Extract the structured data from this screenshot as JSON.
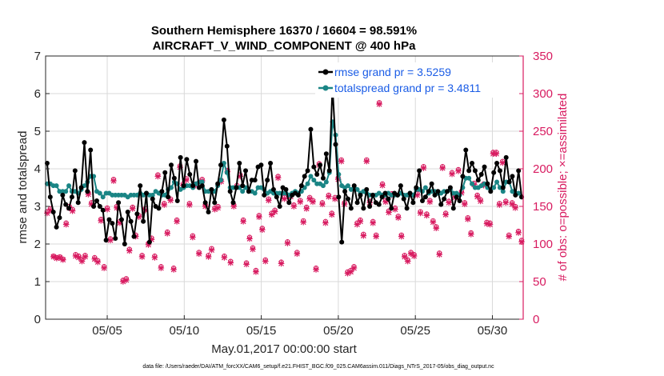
{
  "chart_data": {
    "type": "line",
    "title_line1": "Southern Hemisphere 16370 / 16604 = 98.591%",
    "title_line2": "AIRCRAFT_V_WIND_COMPONENT @ 400 hPa",
    "xlabel": "May.01,2017 00:00:00 start",
    "ylabel_left": "rmse and totalspread",
    "ylabel_right": "# of obs: o=possible; ×=assimilated",
    "footer": "data file: /Users/raeder/DAI/ATM_forcXX/CAM6_setup/f.e21.FHIST_BGC.f09_025.CAM6assim.011/Diags_NTrS_2017-05/obs_diag_output.nc",
    "x_ticks": [
      {
        "value": 5,
        "label": "05/05"
      },
      {
        "value": 10,
        "label": "05/10"
      },
      {
        "value": 15,
        "label": "05/15"
      },
      {
        "value": 20,
        "label": "05/20"
      },
      {
        "value": 25,
        "label": "05/25"
      },
      {
        "value": 30,
        "label": "05/30"
      }
    ],
    "xlim": [
      1,
      32
    ],
    "ylim_left": [
      0,
      7
    ],
    "yticks_left": [
      "0",
      "1",
      "2",
      "3",
      "4",
      "5",
      "6",
      "7"
    ],
    "ylim_right": [
      0,
      350
    ],
    "yticks_right": [
      "0",
      "50",
      "100",
      "150",
      "200",
      "250",
      "300",
      "350"
    ],
    "colors": {
      "rmse": "#000000",
      "spread": "#1a8585",
      "obs": "#d81b60",
      "legend_text": "#1a5ce6"
    },
    "series": [
      {
        "name": "rmse grand pr = 3.5259",
        "axis": "left",
        "values": [
          4.15,
          3.25,
          2.85,
          2.45,
          2.7,
          3.3,
          3.05,
          2.95,
          3.25,
          3.95,
          3.1,
          3.5,
          4.7,
          3.4,
          4.5,
          3.0,
          3.15,
          3.0,
          2.9,
          2.1,
          2.65,
          2.55,
          2.15,
          3.1,
          2.65,
          2.0,
          2.85,
          2.6,
          2.2,
          2.8,
          3.55,
          2.6,
          3.35,
          2.05,
          3.2,
          3.0,
          2.95,
          3.4,
          3.9,
          3.25,
          4.1,
          3.75,
          3.15,
          4.3,
          3.55,
          4.25,
          3.85,
          3.55,
          4.2,
          3.5,
          3.55,
          3.1,
          2.85,
          3.45,
          3.1,
          3.6,
          4.1,
          5.3,
          4.6,
          3.4,
          3.1,
          3.5,
          4.15,
          3.55,
          3.95,
          3.4,
          3.7,
          3.7,
          4.05,
          4.1,
          3.3,
          3.7,
          4.15,
          3.45,
          3.25,
          3.0,
          3.5,
          3.45,
          3.1,
          3.3,
          3.35,
          3.3,
          3.55,
          3.8,
          3.95,
          5.05,
          4.05,
          3.85,
          4.1,
          3.75,
          4.4,
          3.95,
          6.2,
          4.65,
          3.25,
          2.05,
          3.4,
          3.2,
          2.95,
          3.55,
          3.1,
          3.3,
          2.95,
          3.45,
          3.0,
          3.3,
          3.1,
          3.05,
          3.25,
          3.35,
          3.2,
          2.95,
          3.35,
          3.3,
          3.55,
          3.2,
          2.95,
          3.35,
          3.1,
          3.5,
          3.95,
          3.15,
          3.25,
          3.4,
          3.6,
          3.3,
          3.4,
          3.05,
          3.2,
          3.4,
          3.5,
          2.95,
          3.25,
          3.15,
          3.8,
          4.5,
          3.95,
          4.15,
          3.95,
          3.7,
          3.85,
          4.05,
          3.6,
          3.4,
          3.9,
          4.15,
          3.95,
          3.5,
          4.3,
          3.65,
          3.8,
          3.3,
          3.95,
          3.25
        ]
      },
      {
        "name": "totalspread grand pr = 3.4811",
        "axis": "left",
        "values": [
          3.6,
          3.6,
          3.55,
          3.55,
          3.4,
          3.4,
          3.4,
          3.55,
          3.4,
          3.4,
          3.35,
          3.45,
          3.55,
          3.65,
          3.8,
          3.8,
          3.4,
          3.35,
          3.25,
          3.35,
          3.35,
          3.3,
          3.3,
          3.3,
          3.3,
          3.3,
          3.25,
          3.3,
          3.3,
          3.3,
          3.35,
          3.3,
          3.35,
          3.3,
          3.3,
          3.4,
          3.35,
          3.3,
          3.3,
          3.45,
          3.5,
          3.65,
          3.6,
          3.45,
          3.5,
          3.55,
          3.55,
          3.5,
          3.6,
          3.65,
          3.65,
          3.4,
          3.4,
          3.4,
          3.4,
          3.55,
          3.7,
          4.15,
          3.9,
          3.5,
          3.5,
          3.5,
          3.5,
          3.4,
          3.5,
          3.4,
          3.4,
          3.35,
          3.5,
          3.5,
          3.45,
          3.35,
          3.4,
          3.35,
          3.35,
          3.35,
          3.35,
          3.35,
          3.3,
          3.35,
          3.4,
          3.35,
          3.4,
          3.5,
          3.6,
          3.8,
          3.7,
          3.6,
          3.6,
          3.55,
          3.65,
          3.9,
          5.25,
          4.9,
          3.85,
          3.55,
          3.5,
          3.55,
          3.45,
          3.5,
          3.45,
          3.35,
          3.4,
          3.35,
          3.3,
          3.3,
          3.3,
          3.35,
          3.3,
          3.3,
          3.35,
          3.3,
          3.3,
          3.3,
          3.35,
          3.3,
          3.3,
          3.35,
          3.3,
          3.45,
          3.45,
          3.4,
          3.5,
          3.35,
          3.4,
          3.4,
          3.35,
          3.35,
          3.4,
          3.4,
          3.45,
          3.35,
          3.35,
          3.3,
          3.5,
          3.75,
          3.75,
          3.6,
          3.5,
          3.5,
          3.55,
          3.6,
          3.5,
          3.45,
          3.5,
          3.65,
          3.5,
          3.4,
          3.65,
          3.65,
          3.4,
          3.35,
          3.35,
          3.25
        ]
      },
      {
        "name": "possible observations",
        "axis": "right",
        "marker": "o",
        "values": [
          143,
          147,
          84,
          82,
          83,
          80,
          128,
          150,
          146,
          86,
          84,
          79,
          85,
          168,
          155,
          82,
          78,
          133,
          70,
          148,
          107,
          186,
          150,
          130,
          52,
          54,
          93,
          149,
          112,
          138,
          85,
          147,
          101,
          108,
          84,
          192,
          70,
          154,
          116,
          160,
          68,
          132,
          204,
          180,
          187,
          154,
          111,
          180,
          89,
          186,
          152,
          85,
          94,
          148,
          150,
          185,
          84,
          198,
          77,
          152,
          178,
          192,
          132,
          75,
          109,
          95,
          65,
          138,
          121,
          79,
          160,
          141,
          145,
          190,
          76,
          162,
          103,
          165,
          152,
          89,
          158,
          131,
          149,
          162,
          158,
          68,
          207,
          155,
          130,
          165,
          141,
          162,
          188,
          212,
          155,
          63,
          65,
          70,
          128,
          132,
          113,
          212,
          157,
          130,
          112,
          288,
          180,
          158,
          144,
          167,
          148,
          137,
          112,
          85,
          79,
          89,
          86,
          167,
          143,
          203,
          140,
          158,
          131,
          123,
          88,
          203,
          141,
          157,
          195,
          164,
          199,
          170,
          155,
          135,
          115,
          181,
          165,
          159,
          180,
          129,
          128,
          222,
          222,
          154,
          210,
          157,
          112,
          155,
          150,
          117,
          105
        ]
      },
      {
        "name": "assimilated observations",
        "axis": "right",
        "marker": "x",
        "values": [
          141,
          145,
          83,
          81,
          82,
          79,
          126,
          148,
          144,
          84,
          82,
          77,
          83,
          166,
          153,
          80,
          76,
          131,
          68,
          146,
          105,
          184,
          148,
          128,
          50,
          52,
          91,
          147,
          110,
          136,
          83,
          145,
          99,
          106,
          82,
          190,
          68,
          152,
          114,
          158,
          66,
          130,
          202,
          178,
          185,
          152,
          109,
          178,
          87,
          184,
          150,
          83,
          92,
          146,
          148,
          183,
          82,
          196,
          75,
          150,
          176,
          190,
          130,
          73,
          107,
          93,
          63,
          136,
          119,
          77,
          158,
          139,
          143,
          188,
          74,
          160,
          101,
          163,
          150,
          87,
          156,
          129,
          147,
          160,
          156,
          66,
          205,
          153,
          128,
          163,
          139,
          160,
          186,
          210,
          153,
          61,
          63,
          68,
          126,
          130,
          111,
          210,
          155,
          128,
          110,
          286,
          178,
          156,
          142,
          165,
          146,
          135,
          110,
          83,
          77,
          87,
          84,
          165,
          141,
          201,
          138,
          156,
          129,
          121,
          86,
          201,
          139,
          155,
          193,
          162,
          197,
          168,
          153,
          133,
          113,
          179,
          163,
          157,
          178,
          127,
          126,
          220,
          220,
          152,
          208,
          155,
          110,
          153,
          148,
          115,
          103
        ]
      }
    ]
  }
}
